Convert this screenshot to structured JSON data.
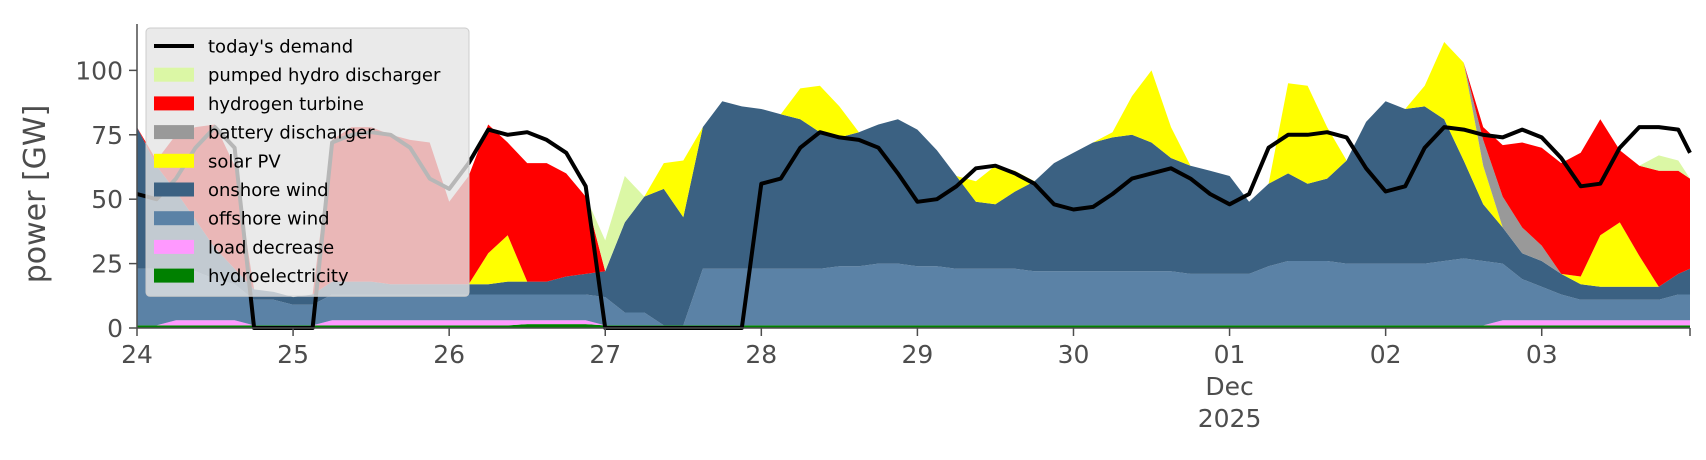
{
  "chart_data": {
    "type": "area",
    "title": "",
    "ylabel": "power [GW]",
    "xlabel": "",
    "ylim": [
      0,
      118
    ],
    "xlim": [
      0,
      9.95
    ],
    "x_unit_note_label": "Dec",
    "year_label": "2025",
    "yticks": [
      0,
      25,
      50,
      75,
      100
    ],
    "xticks": [
      {
        "x": 0,
        "label": "24"
      },
      {
        "x": 1,
        "label": "25"
      },
      {
        "x": 2,
        "label": "26"
      },
      {
        "x": 3,
        "label": "27"
      },
      {
        "x": 4,
        "label": "28"
      },
      {
        "x": 5,
        "label": "29"
      },
      {
        "x": 6,
        "label": "30"
      },
      {
        "x": 7,
        "label": "01"
      },
      {
        "x": 8,
        "label": "02"
      },
      {
        "x": 9,
        "label": "03"
      }
    ],
    "grid": false,
    "legend_placement": "top-left",
    "x": [
      0,
      0.125,
      0.25,
      0.375,
      0.5,
      0.625,
      0.75,
      0.875,
      1,
      1.125,
      1.25,
      1.375,
      1.5,
      1.625,
      1.75,
      1.875,
      2,
      2.125,
      2.25,
      2.375,
      2.5,
      2.625,
      2.75,
      2.875,
      3,
      3.125,
      3.25,
      3.375,
      3.5,
      3.625,
      3.75,
      3.875,
      4,
      4.125,
      4.25,
      4.375,
      4.5,
      4.625,
      4.75,
      4.875,
      5,
      5.125,
      5.25,
      5.375,
      5.5,
      5.625,
      5.75,
      5.875,
      6,
      6.125,
      6.25,
      6.375,
      6.5,
      6.625,
      6.75,
      6.875,
      7,
      7.125,
      7.25,
      7.375,
      7.5,
      7.625,
      7.75,
      7.875,
      8,
      8.125,
      8.25,
      8.375,
      8.5,
      8.625,
      8.75,
      8.875,
      9,
      9.125,
      9.25,
      9.375,
      9.5,
      9.625,
      9.75,
      9.875,
      9.95
    ],
    "series": [
      {
        "name": "hydroelectricity",
        "color": "#008000",
        "values": [
          1,
          1,
          1,
          1,
          1,
          1,
          1,
          1,
          1,
          1,
          1,
          1,
          1,
          1,
          1,
          1,
          1,
          1,
          1,
          1,
          1.5,
          1.5,
          1.5,
          1.5,
          1,
          1,
          1,
          1,
          1,
          1,
          1,
          1,
          1,
          1,
          1,
          1,
          1,
          1,
          1,
          1,
          1,
          1,
          1,
          1,
          1,
          1,
          1,
          1,
          1,
          1,
          1,
          1,
          1,
          1,
          1,
          1,
          1,
          1,
          1,
          1,
          1,
          1,
          1,
          1,
          1,
          1,
          1,
          1,
          1,
          1,
          1,
          1,
          1,
          1,
          1,
          1,
          1,
          1,
          1,
          1,
          1
        ]
      },
      {
        "name": "load decrease",
        "color": "#ff99ff",
        "values": [
          0,
          0,
          2,
          2,
          2,
          2,
          0,
          0,
          0,
          0,
          2,
          2,
          2,
          2,
          2,
          2,
          2,
          2,
          2,
          2,
          1.5,
          1.5,
          1.5,
          1.5,
          0,
          0,
          0,
          0,
          0,
          0,
          0,
          0,
          0,
          0,
          0,
          0,
          0,
          0,
          0,
          0,
          0,
          0,
          0,
          0,
          0,
          0,
          0,
          0,
          0,
          0,
          0,
          0,
          0,
          0,
          0,
          0,
          0,
          0,
          0,
          0,
          0,
          0,
          0,
          0,
          0,
          0,
          0,
          0,
          0,
          0,
          2,
          2,
          2,
          2,
          2,
          2,
          2,
          2,
          2,
          2,
          2
        ]
      },
      {
        "name": "offshore wind",
        "color": "#5b82a6",
        "values": [
          22,
          22,
          20,
          19,
          16,
          14,
          10,
          10,
          8,
          8,
          10,
          10,
          10,
          10,
          10,
          10,
          10,
          10,
          10,
          10,
          10,
          10,
          10,
          10,
          11,
          5,
          5,
          0,
          0,
          22,
          22,
          22,
          22,
          22,
          22,
          22,
          23,
          23,
          24,
          24,
          23,
          23,
          22,
          22,
          22,
          22,
          21,
          21,
          21,
          21,
          21,
          21,
          21,
          21,
          20,
          20,
          20,
          20,
          23,
          25,
          25,
          25,
          24,
          24,
          24,
          24,
          24,
          25,
          26,
          25,
          22,
          16,
          13,
          10,
          8,
          8,
          8,
          8,
          8,
          10,
          10
        ]
      },
      {
        "name": "onshore wind",
        "color": "#3b6182",
        "values": [
          55,
          40,
          30,
          20,
          12,
          6,
          4,
          3,
          3,
          4,
          5,
          5,
          5,
          4,
          4,
          4,
          4,
          4,
          4,
          5,
          5,
          5,
          7,
          8,
          10,
          35,
          45,
          53,
          42,
          55,
          65,
          63,
          62,
          60,
          58,
          53,
          50,
          52,
          54,
          56,
          53,
          45,
          36,
          26,
          25,
          30,
          35,
          42,
          46,
          50,
          52,
          53,
          50,
          44,
          42,
          40,
          38,
          28,
          32,
          34,
          30,
          32,
          40,
          55,
          63,
          60,
          61,
          55,
          38,
          22,
          14,
          10,
          10,
          8,
          6,
          5,
          5,
          5,
          5,
          8,
          10
        ]
      },
      {
        "name": "solar PV",
        "color": "#ffff00",
        "values": [
          0,
          0,
          0,
          0,
          0,
          0,
          0,
          0,
          0,
          0,
          0,
          0,
          0,
          0,
          0,
          0,
          0,
          0,
          12,
          18,
          0,
          0,
          0,
          0,
          0,
          0,
          0,
          10,
          22,
          0,
          0,
          0,
          0,
          0,
          12,
          18,
          12,
          0,
          0,
          0,
          0,
          0,
          0,
          8,
          15,
          8,
          0,
          0,
          0,
          0,
          2,
          15,
          28,
          12,
          0,
          0,
          0,
          0,
          0,
          35,
          38,
          20,
          0,
          0,
          0,
          0,
          8,
          30,
          38,
          15,
          0,
          0,
          0,
          0,
          3,
          20,
          25,
          12,
          0,
          0,
          0
        ]
      },
      {
        "name": "battery discharger",
        "color": "#999999",
        "values": [
          0,
          0,
          0,
          0,
          0,
          0,
          0,
          0,
          0,
          0,
          0,
          0,
          0,
          0,
          0,
          0,
          0,
          0,
          0,
          0,
          0,
          0,
          0,
          0,
          0,
          0,
          0,
          0,
          0,
          0,
          0,
          0,
          0,
          0,
          0,
          0,
          0,
          0,
          0,
          0,
          0,
          0,
          0,
          0,
          0,
          0,
          0,
          0,
          0,
          0,
          0,
          0,
          0,
          0,
          0,
          0,
          0,
          0,
          0,
          0,
          0,
          0,
          0,
          0,
          0,
          0,
          0,
          0,
          0,
          10,
          12,
          10,
          6,
          0,
          0,
          0,
          0,
          0,
          0,
          0,
          0
        ]
      },
      {
        "name": "hydrogen turbine",
        "color": "#ff0000",
        "values": [
          0,
          2,
          22,
          36,
          48,
          40,
          0,
          0,
          0,
          0,
          55,
          60,
          60,
          58,
          56,
          55,
          32,
          42,
          50,
          36,
          46,
          46,
          40,
          30,
          0,
          0,
          0,
          0,
          0,
          0,
          0,
          0,
          0,
          0,
          0,
          0,
          0,
          0,
          0,
          0,
          0,
          0,
          0,
          0,
          0,
          0,
          0,
          0,
          0,
          0,
          0,
          0,
          0,
          0,
          0,
          0,
          0,
          0,
          0,
          0,
          0,
          0,
          0,
          0,
          0,
          0,
          0,
          0,
          0,
          5,
          20,
          33,
          38,
          43,
          48,
          45,
          28,
          35,
          45,
          40,
          35
        ]
      },
      {
        "name": "pumped hydro discharger",
        "color": "#dbf7a5",
        "values": [
          0,
          0,
          0,
          0,
          0,
          0,
          0,
          0,
          0,
          0,
          0,
          0,
          0,
          0,
          0,
          0,
          0,
          0,
          0,
          0,
          0,
          0,
          0,
          0,
          12,
          18,
          0,
          0,
          0,
          0,
          0,
          0,
          0,
          0,
          0,
          0,
          0,
          0,
          0,
          0,
          0,
          0,
          0,
          0,
          0,
          0,
          0,
          0,
          0,
          0,
          0,
          0,
          0,
          0,
          0,
          0,
          0,
          0,
          0,
          0,
          0,
          0,
          0,
          0,
          0,
          0,
          0,
          0,
          0,
          0,
          0,
          0,
          0,
          0,
          0,
          0,
          0,
          0,
          6,
          4,
          0
        ]
      },
      {
        "name": "today's demand",
        "color": "#000000",
        "type": "line",
        "values": [
          52,
          50,
          58,
          70,
          78,
          70,
          0,
          0,
          0,
          0,
          72,
          75,
          76,
          75,
          70,
          58,
          54,
          64,
          77,
          75,
          76,
          73,
          68,
          55,
          0,
          0,
          0,
          0,
          0,
          0,
          0,
          0,
          56,
          58,
          70,
          76,
          74,
          73,
          70,
          60,
          49,
          50,
          55,
          62,
          63,
          60,
          56,
          48,
          46,
          47,
          52,
          58,
          60,
          62,
          58,
          52,
          48,
          52,
          70,
          75,
          75,
          76,
          74,
          62,
          53,
          55,
          70,
          78,
          77,
          75,
          74,
          77,
          74,
          66,
          55,
          56,
          70,
          78,
          78,
          77,
          68
        ]
      }
    ]
  }
}
